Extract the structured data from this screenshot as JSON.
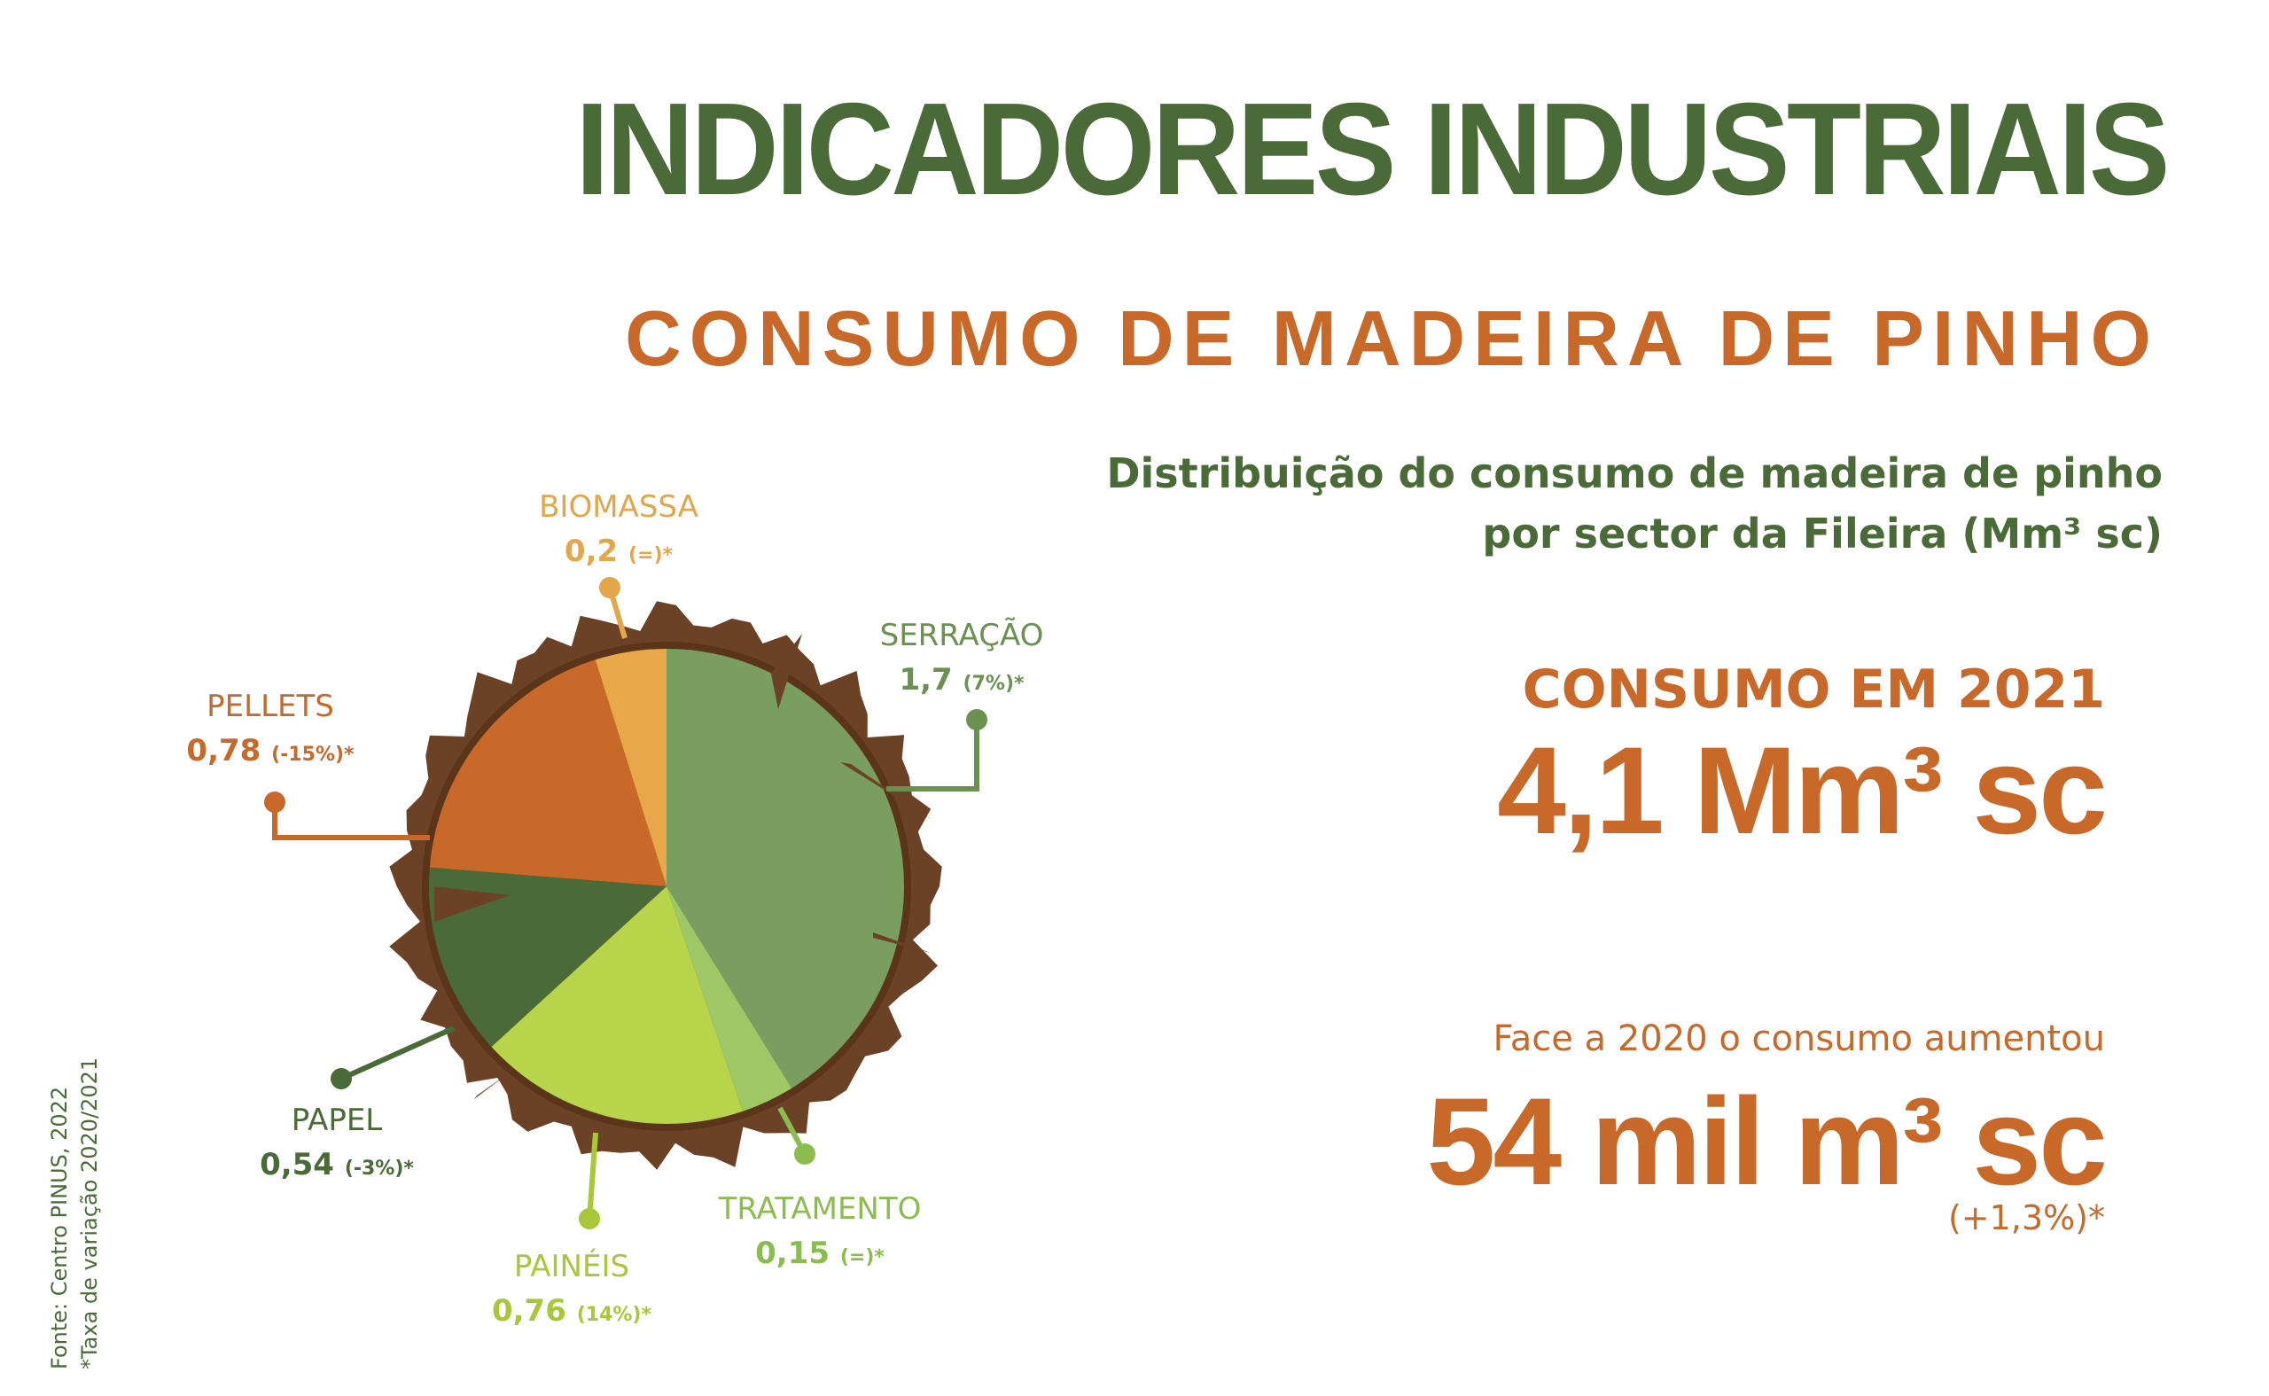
{
  "title": "INDICADORES INDUSTRIAIS",
  "subtitle": "CONSUMO DE MADEIRA DE PINHO",
  "description": {
    "line1": "Distribuição do consumo de madeira de pinho",
    "line2": "por sector da Fileira (Mm³ sc)"
  },
  "consumo": {
    "label": "CONSUMO EM 2021",
    "value": "4,1 Mm³ sc"
  },
  "face": {
    "label": "Face a 2020 o consumo aumentou",
    "value": "54 mil m³ sc",
    "variation": "(+1,3%)*"
  },
  "source": {
    "line1": "Fonte: Centro PINUS, 2022",
    "line2": "*Taxa de variação 2020/2021"
  },
  "colors": {
    "dark_green": "#4a6b38",
    "orange": "#c8692a",
    "bark": "#6b4226"
  },
  "chart_data": {
    "type": "pie",
    "unit": "Mm³ sc",
    "slices": [
      {
        "name": "SERRAÇÃO",
        "value": 1.7,
        "value_label": "1,7",
        "variation": "(7%)*",
        "color": "#7a9e5f",
        "label_color": "#6a9150"
      },
      {
        "name": "TRATAMENTO",
        "value": 0.15,
        "value_label": "0,15",
        "variation": "(=)*",
        "color": "#9dc865",
        "label_color": "#8bbd4e"
      },
      {
        "name": "PAINÉIS",
        "value": 0.76,
        "value_label": "0,76",
        "variation": "(14%)*",
        "color": "#b8d44a",
        "label_color": "#a8c83a"
      },
      {
        "name": "PAPEL",
        "value": 0.54,
        "value_label": "0,54",
        "variation": "(-3%)*",
        "color": "#4a6b38",
        "label_color": "#4a6b38"
      },
      {
        "name": "PELLETS",
        "value": 0.78,
        "value_label": "0,78",
        "variation": "(-15%)*",
        "color": "#c8692a",
        "label_color": "#c8692a"
      },
      {
        "name": "BIOMASSA",
        "value": 0.2,
        "value_label": "0,2",
        "variation": "(=)*",
        "color": "#e8a84a",
        "label_color": "#e3a64a"
      }
    ]
  }
}
